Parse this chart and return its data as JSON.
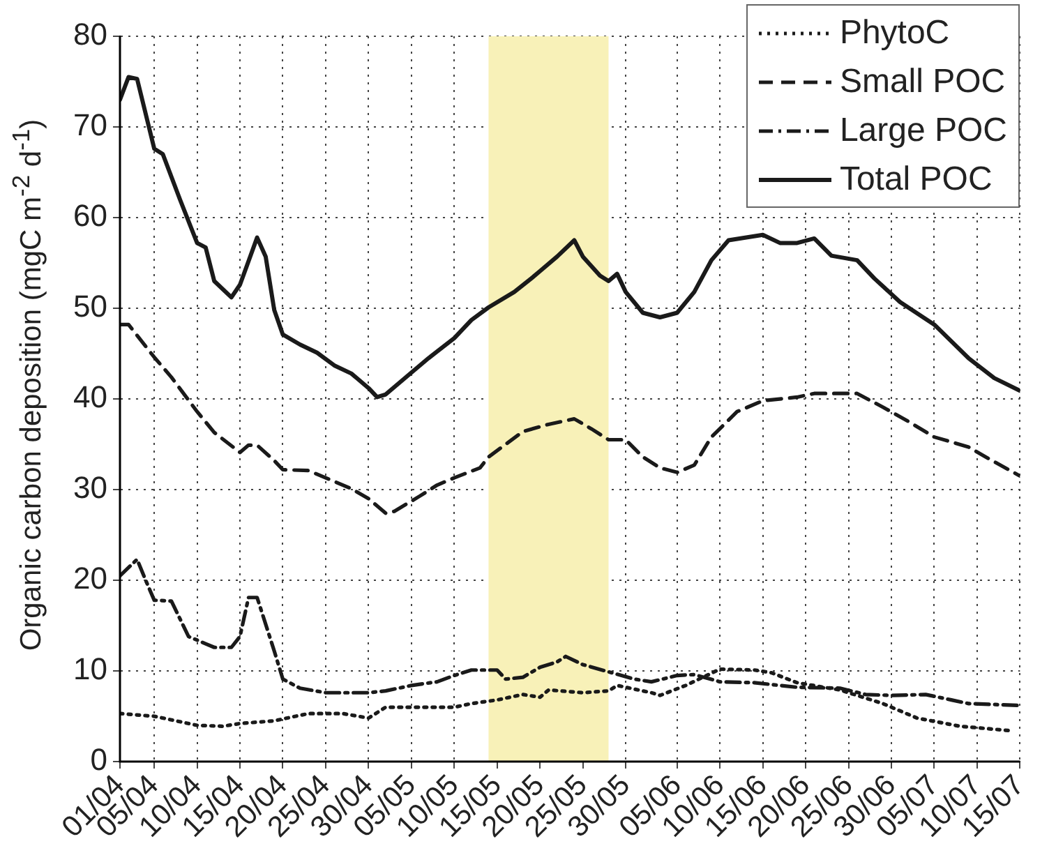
{
  "chart_data": {
    "type": "line",
    "ylabel": "Organic carbon deposition (mgC m$^{-2}$ d$^{-1}$)",
    "xlim": [
      "--04-01",
      "--07-15"
    ],
    "xticks": [
      {
        "value": "--04-01",
        "label": "01/04"
      },
      {
        "value": "--04-05",
        "label": "05/04"
      },
      {
        "value": "--04-10",
        "label": "10/04"
      },
      {
        "value": "--04-15",
        "label": "15/04"
      },
      {
        "value": "--04-20",
        "label": "20/04"
      },
      {
        "value": "--04-25",
        "label": "25/04"
      },
      {
        "value": "--04-30",
        "label": "30/04"
      },
      {
        "value": "--05-05",
        "label": "05/05"
      },
      {
        "value": "--05-10",
        "label": "10/05"
      },
      {
        "value": "--05-15",
        "label": "15/05"
      },
      {
        "value": "--05-20",
        "label": "20/05"
      },
      {
        "value": "--05-25",
        "label": "25/05"
      },
      {
        "value": "--05-30",
        "label": "30/05"
      },
      {
        "value": "--06-05",
        "label": "05/06"
      },
      {
        "value": "--06-10",
        "label": "10/06"
      },
      {
        "value": "--06-15",
        "label": "15/06"
      },
      {
        "value": "--06-20",
        "label": "20/06"
      },
      {
        "value": "--06-25",
        "label": "25/06"
      },
      {
        "value": "--06-30",
        "label": "30/06"
      },
      {
        "value": "--07-05",
        "label": "05/07"
      },
      {
        "value": "--07-10",
        "label": "10/07"
      },
      {
        "value": "--07-15",
        "label": "15/07"
      }
    ],
    "ylim": [
      0,
      80
    ],
    "yticks": [
      0,
      10,
      20,
      30,
      40,
      50,
      60,
      70,
      80
    ],
    "grid": true,
    "legend": "top right",
    "marker": "none",
    "bands": [
      {
        "axis": "x",
        "from": "--05-14",
        "to": "--05-28",
        "color": "#f8f1b8"
      }
    ],
    "series": [
      {
        "name": "PhytoC",
        "color": "#1a1a1a",
        "line_style": "dotted",
        "x": [
          "--04-01",
          "--04-05",
          "--04-10",
          "--04-13",
          "--04-15",
          "--04-19",
          "--04-20",
          "--04-23",
          "--04-27",
          "--04-30",
          "--05-02",
          "--05-05",
          "--05-10",
          "--05-12",
          "--05-15",
          "--05-18",
          "--05-20",
          "--05-21",
          "--05-25",
          "--05-28",
          "--05-29",
          "--06-02",
          "--06-03",
          "--06-06",
          "--06-10",
          "--06-14",
          "--06-16",
          "--06-19",
          "--06-24",
          "--06-29",
          "--07-03",
          "--07-08",
          "--07-14"
        ],
        "values": [
          5.3,
          5,
          4,
          3.9,
          4.2,
          4.5,
          4.7,
          5.3,
          5.3,
          4.8,
          6,
          6,
          6,
          6.4,
          6.8,
          7.4,
          7.1,
          7.9,
          7.6,
          7.8,
          8.4,
          7.6,
          7.3,
          8.4,
          10.2,
          10.1,
          9.8,
          8.7,
          7.9,
          6.4,
          4.8,
          3.9,
          3.4
        ]
      },
      {
        "name": "Small POC",
        "color": "#1a1a1a",
        "line_style": "dashed",
        "x": [
          "--04-01",
          "--04-02",
          "--04-05",
          "--04-07",
          "--04-10",
          "--04-12",
          "--04-15",
          "--04-16",
          "--04-17",
          "--04-19",
          "--04-20",
          "--04-23",
          "--04-26",
          "--04-28",
          "--04-30",
          "--05-02",
          "--05-03",
          "--05-06",
          "--05-08",
          "--05-10",
          "--05-13",
          "--05-14",
          "--05-18",
          "--05-21",
          "--05-24",
          "--05-26",
          "--05-28",
          "--05-30",
          "--06-01",
          "--06-03",
          "--06-05",
          "--06-07",
          "--06-09",
          "--06-12",
          "--06-15",
          "--06-19",
          "--06-21",
          "--06-26",
          "--06-29",
          "--07-02",
          "--07-05",
          "--07-09",
          "--07-11",
          "--07-15"
        ],
        "values": [
          48.2,
          48.2,
          44.6,
          42.4,
          38.6,
          36.3,
          34.1,
          34.9,
          34.9,
          33.2,
          32.2,
          32.1,
          30.9,
          30.1,
          29,
          27.4,
          27.6,
          29.3,
          30.5,
          31.3,
          32.4,
          33.6,
          36.4,
          37.2,
          37.8,
          36.7,
          35.5,
          35.5,
          33.6,
          32.4,
          31.9,
          32.7,
          35.8,
          38.6,
          39.8,
          40.2,
          40.6,
          40.6,
          39.1,
          37.5,
          35.8,
          34.7,
          33.6,
          31.5
        ]
      },
      {
        "name": "Large POC",
        "color": "#1a1a1a",
        "line_style": "dashdot",
        "x": [
          "--04-01",
          "--04-03",
          "--04-04",
          "--04-05",
          "--04-07",
          "--04-09",
          "--04-11",
          "--04-12",
          "--04-14",
          "--04-15",
          "--04-16",
          "--04-17",
          "--04-19",
          "--04-20",
          "--04-22",
          "--04-25",
          "--04-30",
          "--05-02",
          "--05-05",
          "--05-08",
          "--05-10",
          "--05-12",
          "--05-15",
          "--05-16",
          "--05-18",
          "--05-20",
          "--05-22",
          "--05-23",
          "--05-25",
          "--05-28",
          "--05-31",
          "--06-02",
          "--06-05",
          "--06-07",
          "--06-10",
          "--06-14",
          "--06-19",
          "--06-24",
          "--06-27",
          "--06-30",
          "--07-04",
          "--07-07",
          "--07-09",
          "--07-15"
        ],
        "values": [
          20.5,
          22.3,
          20,
          17.8,
          17.7,
          13.8,
          13,
          12.6,
          12.6,
          13.8,
          18.1,
          18.1,
          12.2,
          9.1,
          8.1,
          7.6,
          7.6,
          7.8,
          8.4,
          8.8,
          9.5,
          10.1,
          10.1,
          9.1,
          9.3,
          10.4,
          11,
          11.6,
          10.7,
          9.9,
          9.1,
          8.8,
          9.5,
          9.6,
          8.8,
          8.7,
          8.2,
          8.1,
          7.4,
          7.3,
          7.4,
          6.8,
          6.4,
          6.2
        ]
      },
      {
        "name": "Total POC",
        "color": "#1a1a1a",
        "line_style": "solid",
        "x": [
          "--04-01",
          "--04-02",
          "--04-03",
          "--04-05",
          "--04-06",
          "--04-08",
          "--04-10",
          "--04-11",
          "--04-12",
          "--04-14",
          "--04-15",
          "--04-16",
          "--04-17",
          "--04-18",
          "--04-19",
          "--04-20",
          "--04-22",
          "--04-24",
          "--04-26",
          "--04-28",
          "--04-30",
          "--05-01",
          "--05-02",
          "--05-05",
          "--05-07",
          "--05-10",
          "--05-12",
          "--05-14",
          "--05-17",
          "--05-19",
          "--05-20",
          "--05-22",
          "--05-24",
          "--05-25",
          "--05-27",
          "--05-28",
          "--05-29",
          "--05-30",
          "--06-01",
          "--06-03",
          "--06-05",
          "--06-07",
          "--06-09",
          "--06-11",
          "--06-15",
          "--06-17",
          "--06-19",
          "--06-21",
          "--06-23",
          "--06-26",
          "--06-28",
          "--07-01",
          "--07-05",
          "--07-09",
          "--07-12",
          "--07-15"
        ],
        "values": [
          73,
          75.5,
          75.3,
          67.6,
          67,
          62,
          57.2,
          56.7,
          53,
          51.2,
          52.6,
          55.2,
          57.8,
          55.7,
          49.8,
          47.1,
          46,
          45.1,
          43.7,
          42.8,
          41.2,
          40.2,
          40.5,
          42.9,
          44.5,
          46.7,
          48.7,
          50.1,
          51.8,
          53.3,
          54.1,
          55.7,
          57.5,
          55.7,
          53.6,
          53,
          53.8,
          51.8,
          49.5,
          49,
          49.5,
          51.8,
          55.3,
          57.5,
          58.1,
          57.2,
          57.2,
          57.7,
          55.8,
          55.3,
          53.3,
          50.7,
          48.2,
          44.5,
          42.3,
          40.9
        ]
      }
    ]
  }
}
